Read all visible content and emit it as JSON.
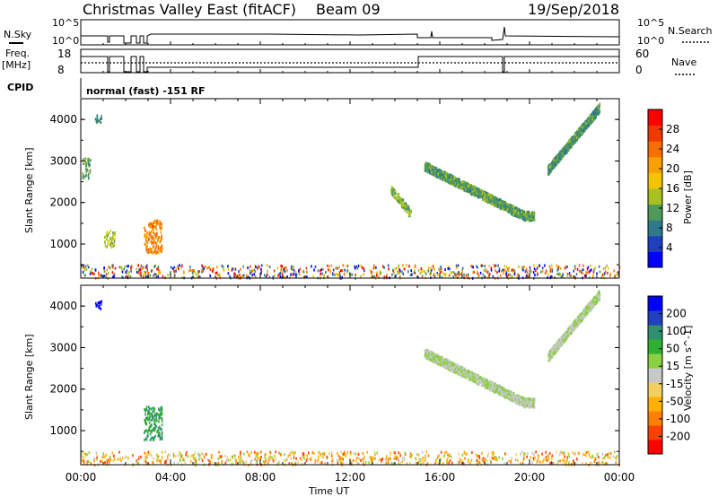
{
  "header": {
    "radar_title": "Christmas Valley East (fitACF)",
    "beam": "Beam 09",
    "date": "19/Sep/2018",
    "nsky_label": "N.Sky",
    "nsky_top": "10^5",
    "nsky_bottom": "10^0",
    "nsearch_label": "N.Search",
    "nsearch_top": "10^5",
    "nsearch_bottom": "10^0",
    "freq_label": "Freq.",
    "freq_unit": "[MHz]",
    "freq_top": "18",
    "freq_bottom": "8",
    "nave_label": "Nave",
    "nave_top": "60",
    "nave_bottom": "0",
    "cpid_label": "CPID",
    "cpid_text": "normal (fast) -151 RF"
  },
  "chart_data": [
    {
      "type": "heatmap",
      "name": "power-panel",
      "xlabel": "",
      "ylabel": "Slant Range [km]",
      "x_range_hours": [
        0,
        24
      ],
      "y_range_km": [
        180,
        4500
      ],
      "y_ticks": [
        "1000",
        "2000",
        "3000",
        "4000"
      ],
      "y_tick_values": [
        1000,
        2000,
        3000,
        4000
      ],
      "colorbar_label": "Power [dB]",
      "colorbar_ticks": [
        "4",
        "8",
        "12",
        "16",
        "20",
        "24",
        "28"
      ],
      "colorbar_range": [
        0,
        30
      ],
      "colorbar_colors": [
        "#0000ff",
        "#1f3fbf",
        "#2f7a8a",
        "#4f9a5a",
        "#a8c020",
        "#f5c400",
        "#f7a000",
        "#f57000",
        "#ee3a00",
        "#ff0000"
      ],
      "features": [
        {
          "name": "near-range-band",
          "t_start": 0.0,
          "t_end": 24.0,
          "r_min": 200,
          "r_max": 520,
          "value": "mixed"
        },
        {
          "name": "early-patch-1",
          "t_start": 0.05,
          "t_end": 0.4,
          "r_min": 2600,
          "r_max": 3100,
          "value": 10
        },
        {
          "name": "early-patch-2",
          "t_start": 0.6,
          "t_end": 0.9,
          "r_min": 3950,
          "r_max": 4150,
          "value": 8
        },
        {
          "name": "early-patch-3",
          "t_start": 1.0,
          "t_end": 1.5,
          "r_min": 950,
          "r_max": 1350,
          "value": 14
        },
        {
          "name": "early-patch-4",
          "t_start": 2.8,
          "t_end": 3.6,
          "r_min": 800,
          "r_max": 1600,
          "value": 22
        },
        {
          "name": "arc-14h",
          "t_start": 13.8,
          "t_end": 14.7,
          "r_min": 1750,
          "r_max": 2350,
          "value": 12
        },
        {
          "name": "arc-16-20h",
          "t_start": 15.3,
          "t_end": 20.2,
          "r_min": 1700,
          "r_max": 2900,
          "value": 10
        },
        {
          "name": "arc-21-23h",
          "t_start": 20.8,
          "t_end": 23.1,
          "r_min": 2800,
          "r_max": 4300,
          "value": 9
        }
      ]
    },
    {
      "type": "heatmap",
      "name": "velocity-panel",
      "xlabel": "Time UT",
      "ylabel": "Slant Range [km]",
      "x_range_hours": [
        0,
        24
      ],
      "x_ticks": [
        "00:00",
        "04:00",
        "08:00",
        "12:00",
        "16:00",
        "20:00",
        "00:00"
      ],
      "x_tick_values": [
        0,
        4,
        8,
        12,
        16,
        20,
        24
      ],
      "y_range_km": [
        180,
        4500
      ],
      "y_ticks": [
        "1000",
        "2000",
        "3000",
        "4000"
      ],
      "y_tick_values": [
        1000,
        2000,
        3000,
        4000
      ],
      "colorbar_label": "Velocity [m s^-1]",
      "colorbar_ticks": [
        "-200",
        "-100",
        "-50",
        "-15",
        "15",
        "50",
        "100",
        "200"
      ],
      "colorbar_colors": [
        "#ff0000",
        "#ff4000",
        "#ff8000",
        "#ffb000",
        "#f0d060",
        "#c8c8c8",
        "#8ad040",
        "#30b030",
        "#2f8f6f",
        "#2040c0",
        "#0000ff"
      ],
      "features": [
        {
          "name": "near-range-band",
          "t_start": 0.0,
          "t_end": 24.0,
          "r_min": 200,
          "r_max": 520,
          "value": "mixed-orange"
        },
        {
          "name": "early-patch-2",
          "t_start": 0.6,
          "t_end": 0.9,
          "r_min": 3950,
          "r_max": 4150,
          "value": 220
        },
        {
          "name": "early-patch-4",
          "t_start": 2.8,
          "t_end": 3.6,
          "r_min": 800,
          "r_max": 1600,
          "value": 60
        },
        {
          "name": "arc-16-20h",
          "t_start": 15.3,
          "t_end": 20.2,
          "r_min": 1700,
          "r_max": 2900,
          "value": 0
        },
        {
          "name": "arc-21-23h",
          "t_start": 20.8,
          "t_end": 23.1,
          "r_min": 2800,
          "r_max": 4300,
          "value": 0
        }
      ]
    }
  ]
}
